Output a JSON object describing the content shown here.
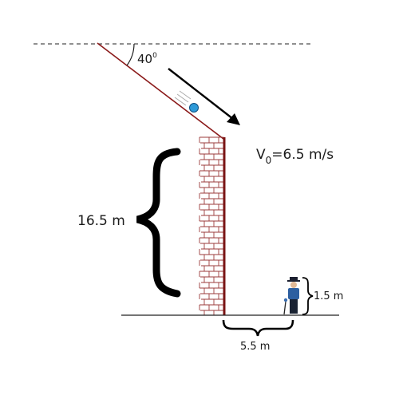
{
  "diagram": {
    "angle": {
      "value": "40",
      "unit": "0"
    },
    "velocity": {
      "symbol": "V",
      "subscript": "0",
      "text": "=6.5 m/s"
    },
    "wall_height": "16.5 m",
    "distance": "5.5 m",
    "person_height": "1.5 m"
  },
  "colors": {
    "wall_line": "#8b1a1a",
    "brick": "#9b3b3b",
    "ball": "#2e9ad8",
    "ink": "#111111"
  }
}
